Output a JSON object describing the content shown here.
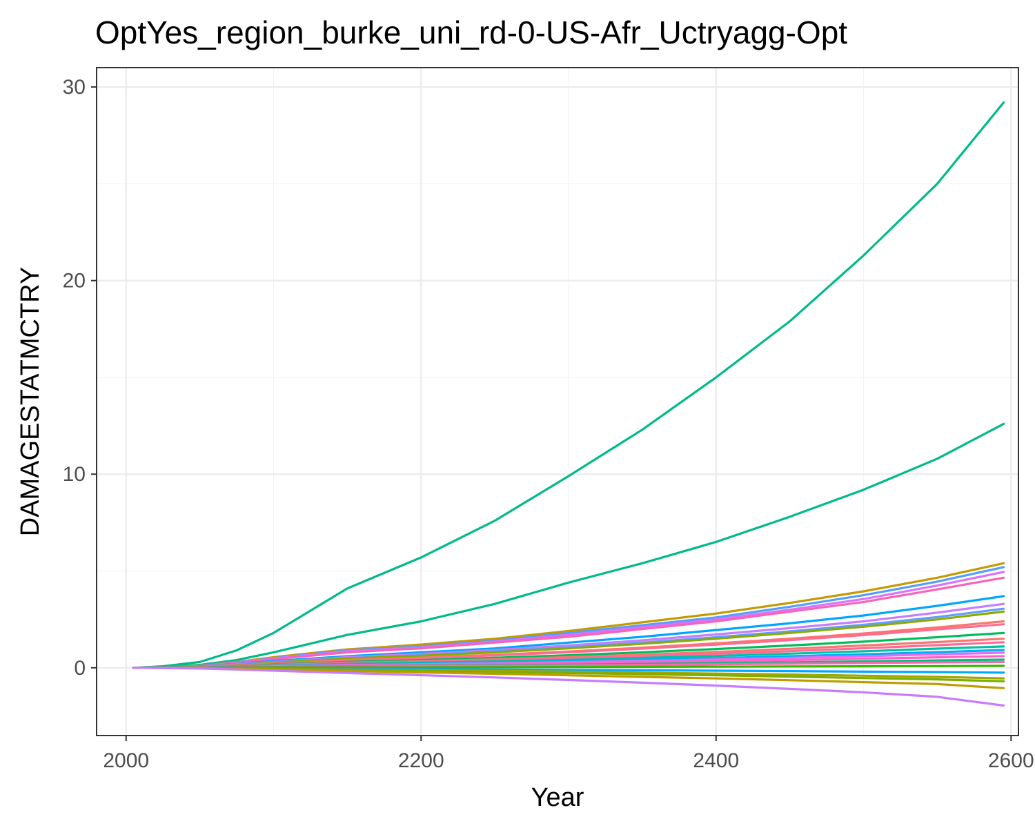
{
  "chart_data": {
    "type": "line",
    "title": "OptYes_region_burke_uni_rd-0-US-Afr_Uctryagg-Opt",
    "xlabel": "Year",
    "ylabel": "DAMAGESTATMCTRY",
    "xlim": [
      1980,
      2605
    ],
    "ylim": [
      -3.5,
      31
    ],
    "x_ticks": [
      2000,
      2200,
      2400,
      2600
    ],
    "x_tick_labels": [
      "2000",
      "2200",
      "2400",
      "2600"
    ],
    "y_ticks": [
      0,
      10,
      20,
      30
    ],
    "y_tick_labels": [
      "0",
      "10",
      "20",
      "30"
    ],
    "x_minor": [
      2100,
      2300,
      2500
    ],
    "y_minor": [
      5,
      15,
      25
    ],
    "grid": true,
    "legend": "none",
    "x": [
      2005,
      2025,
      2050,
      2075,
      2100,
      2150,
      2200,
      2250,
      2300,
      2350,
      2400,
      2450,
      2500,
      2550,
      2595
    ],
    "series": [
      {
        "color": "#00BA8A",
        "values": [
          0,
          0.08,
          0.3,
          0.9,
          1.8,
          4.1,
          5.7,
          7.6,
          9.9,
          12.3,
          15.0,
          17.9,
          21.3,
          25.0,
          29.2
        ]
      },
      {
        "color": "#00BA8A",
        "values": [
          0,
          0.03,
          0.15,
          0.4,
          0.8,
          1.7,
          2.4,
          3.3,
          4.4,
          5.4,
          6.5,
          7.8,
          9.2,
          10.8,
          12.6
        ]
      },
      {
        "color": "#C49A00",
        "values": [
          0,
          0.02,
          0.1,
          0.3,
          0.55,
          0.95,
          1.2,
          1.5,
          1.9,
          2.35,
          2.8,
          3.35,
          3.95,
          4.65,
          5.4
        ]
      },
      {
        "color": "#529EFF",
        "values": [
          0,
          0.02,
          0.09,
          0.28,
          0.5,
          0.9,
          1.1,
          1.4,
          1.8,
          2.2,
          2.6,
          3.15,
          3.75,
          4.45,
          5.2
        ]
      },
      {
        "color": "#DB72FB",
        "values": [
          0,
          0.02,
          0.09,
          0.26,
          0.48,
          0.85,
          1.05,
          1.35,
          1.7,
          2.1,
          2.5,
          3.0,
          3.55,
          4.25,
          4.95
        ]
      },
      {
        "color": "#F863B8",
        "values": [
          0,
          0.02,
          0.08,
          0.25,
          0.45,
          0.8,
          1.0,
          1.3,
          1.6,
          2.0,
          2.4,
          2.9,
          3.4,
          4.05,
          4.65
        ]
      },
      {
        "color": "#00A5FF",
        "values": [
          0,
          0.02,
          0.07,
          0.2,
          0.35,
          0.6,
          0.8,
          1.0,
          1.3,
          1.6,
          1.95,
          2.3,
          2.7,
          3.2,
          3.7
        ]
      },
      {
        "color": "#C77CFF",
        "values": [
          0,
          0.02,
          0.06,
          0.18,
          0.3,
          0.55,
          0.72,
          0.92,
          1.15,
          1.42,
          1.72,
          2.05,
          2.4,
          2.85,
          3.3
        ]
      },
      {
        "color": "#619CFF",
        "values": [
          0,
          0.01,
          0.05,
          0.15,
          0.28,
          0.5,
          0.65,
          0.85,
          1.05,
          1.3,
          1.58,
          1.88,
          2.22,
          2.62,
          3.05
        ]
      },
      {
        "color": "#8AAB00",
        "values": [
          0,
          0.01,
          0.05,
          0.14,
          0.26,
          0.48,
          0.62,
          0.8,
          1.0,
          1.24,
          1.5,
          1.8,
          2.12,
          2.5,
          2.9
        ]
      },
      {
        "color": "#F8766D",
        "values": [
          0,
          0.01,
          0.04,
          0.12,
          0.22,
          0.4,
          0.52,
          0.67,
          0.84,
          1.04,
          1.26,
          1.5,
          1.77,
          2.08,
          2.4
        ]
      },
      {
        "color": "#FF6C91",
        "values": [
          0,
          0.01,
          0.04,
          0.11,
          0.2,
          0.38,
          0.5,
          0.64,
          0.8,
          0.99,
          1.2,
          1.43,
          1.69,
          1.98,
          2.25
        ]
      },
      {
        "color": "#00BD5C",
        "values": [
          0,
          0.01,
          0.03,
          0.09,
          0.17,
          0.3,
          0.4,
          0.52,
          0.65,
          0.8,
          0.97,
          1.15,
          1.35,
          1.58,
          1.8
        ]
      },
      {
        "color": "#F8766D",
        "values": [
          0,
          0.01,
          0.03,
          0.08,
          0.15,
          0.26,
          0.34,
          0.44,
          0.55,
          0.68,
          0.82,
          0.98,
          1.15,
          1.33,
          1.5
        ]
      },
      {
        "color": "#FF6A98",
        "values": [
          0,
          0.01,
          0.03,
          0.07,
          0.13,
          0.23,
          0.3,
          0.39,
          0.49,
          0.6,
          0.72,
          0.86,
          1.01,
          1.17,
          1.32
        ]
      },
      {
        "color": "#00C1A3",
        "values": [
          0,
          0.01,
          0.02,
          0.06,
          0.11,
          0.2,
          0.26,
          0.33,
          0.41,
          0.51,
          0.61,
          0.73,
          0.85,
          0.99,
          1.1
        ]
      },
      {
        "color": "#00B0F6",
        "values": [
          0,
          0.01,
          0.02,
          0.05,
          0.09,
          0.16,
          0.21,
          0.27,
          0.34,
          0.42,
          0.5,
          0.6,
          0.7,
          0.81,
          0.92
        ]
      },
      {
        "color": "#E76BF3",
        "values": [
          0,
          0.0,
          0.02,
          0.04,
          0.08,
          0.14,
          0.18,
          0.23,
          0.29,
          0.36,
          0.43,
          0.51,
          0.6,
          0.69,
          0.78
        ]
      },
      {
        "color": "#FF61C3",
        "values": [
          0,
          0.0,
          0.01,
          0.03,
          0.06,
          0.11,
          0.14,
          0.18,
          0.23,
          0.28,
          0.34,
          0.4,
          0.47,
          0.54,
          0.6
        ]
      },
      {
        "color": "#00BF7D",
        "values": [
          0,
          0.0,
          0.01,
          0.02,
          0.04,
          0.08,
          0.1,
          0.13,
          0.16,
          0.2,
          0.24,
          0.28,
          0.33,
          0.38,
          0.42
        ]
      },
      {
        "color": "#FF64B0",
        "values": [
          0,
          0.0,
          0.01,
          0.02,
          0.03,
          0.06,
          0.08,
          0.1,
          0.12,
          0.15,
          0.18,
          0.21,
          0.25,
          0.28,
          0.3
        ]
      },
      {
        "color": "#39B600",
        "values": [
          0,
          0.0,
          0.0,
          0.01,
          0.01,
          0.02,
          0.02,
          0.03,
          0.04,
          0.05,
          0.06,
          0.07,
          0.08,
          0.09,
          0.1
        ]
      },
      {
        "color": "#00A9FF",
        "values": [
          0,
          0.0,
          -0.01,
          -0.02,
          -0.03,
          -0.05,
          -0.07,
          -0.09,
          -0.11,
          -0.13,
          -0.15,
          -0.17,
          -0.2,
          -0.22,
          -0.25
        ]
      },
      {
        "color": "#A3A500",
        "values": [
          0,
          0.0,
          -0.01,
          -0.03,
          -0.05,
          -0.09,
          -0.12,
          -0.16,
          -0.2,
          -0.25,
          -0.3,
          -0.35,
          -0.41,
          -0.47,
          -0.55
        ]
      },
      {
        "color": "#7CAE00",
        "values": [
          0,
          0.0,
          -0.01,
          -0.04,
          -0.07,
          -0.12,
          -0.17,
          -0.22,
          -0.27,
          -0.33,
          -0.39,
          -0.46,
          -0.53,
          -0.6,
          -0.7
        ]
      },
      {
        "color": "#C09B00",
        "values": [
          0,
          -0.01,
          -0.03,
          -0.06,
          -0.1,
          -0.17,
          -0.24,
          -0.31,
          -0.39,
          -0.47,
          -0.55,
          -0.64,
          -0.74,
          -0.84,
          -1.05
        ]
      },
      {
        "color": "#C77CFF",
        "values": [
          0,
          -0.01,
          -0.04,
          -0.09,
          -0.15,
          -0.27,
          -0.38,
          -0.5,
          -0.63,
          -0.77,
          -0.92,
          -1.09,
          -1.27,
          -1.5,
          -1.95
        ]
      }
    ]
  }
}
